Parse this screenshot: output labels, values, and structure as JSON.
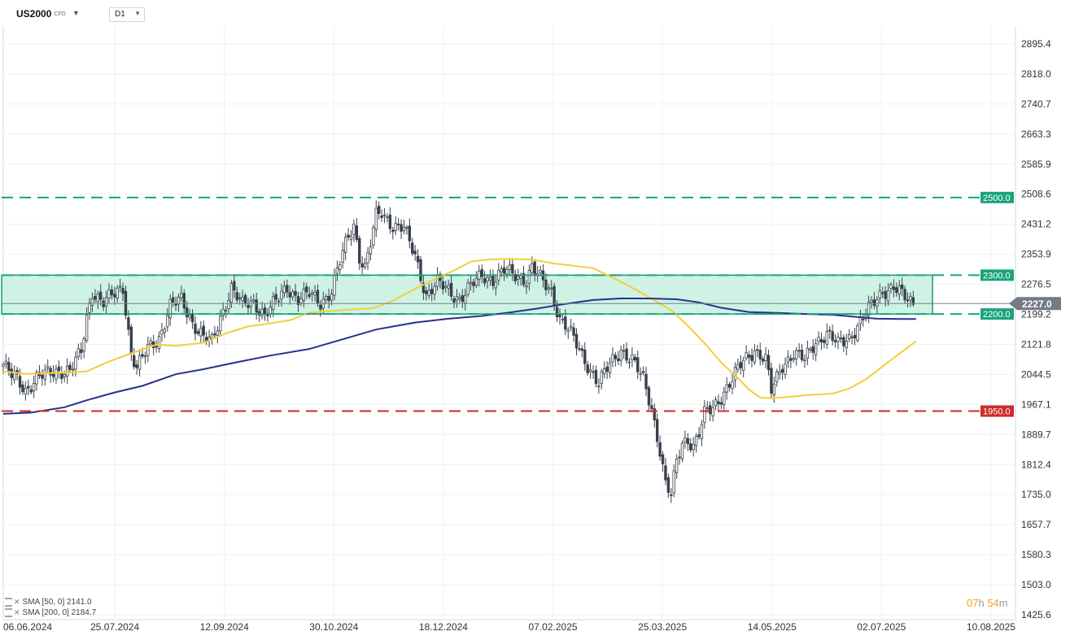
{
  "header": {
    "symbol": "US2000",
    "symbol_sub": "CFD",
    "timeframe": "D1"
  },
  "indicators": [
    {
      "label": "SMA [50, 0]",
      "value": "2141.0",
      "color": "#f2cf3a"
    },
    {
      "label": "SMA [200, 0]",
      "value": "2184.7",
      "color": "#27318d"
    }
  ],
  "timer": {
    "h": "07",
    "h_unit": "h",
    "m": "54",
    "m_unit": "m"
  },
  "chart_data": {
    "type": "candlestick",
    "y_ticks": [
      "2895.4",
      "2818.0",
      "2740.7",
      "2663.3",
      "2585.9",
      "2508.6",
      "2431.2",
      "2353.9",
      "2276.5",
      "2199.2",
      "2121.8",
      "2044.5",
      "1967.1",
      "1889.7",
      "1812.4",
      "1735.0",
      "1657.7",
      "1580.3",
      "1503.0",
      "1425.6"
    ],
    "x_ticks": [
      "06.06.2024",
      "25.07.2024",
      "12.09.2024",
      "30.10.2024",
      "18.12.2024",
      "07.02.2025",
      "25.03.2025",
      "14.05.2025",
      "02.07.2025",
      "10.08.2025"
    ],
    "ylim": [
      1425.6,
      2895.4
    ],
    "current_price": "2227.0",
    "levels": [
      {
        "value": 2500,
        "label": "2500.0",
        "color": "#1aa37c",
        "style": "dashed"
      },
      {
        "value": 2300,
        "label": "2300.0",
        "color": "#1aa37c",
        "style": "dashed"
      },
      {
        "value": 2200,
        "label": "2200.0",
        "color": "#1aa37c",
        "style": "dashed"
      },
      {
        "value": 1950,
        "label": "1950.0",
        "color": "#cf2a2a",
        "style": "dashed"
      }
    ],
    "zone": {
      "from": 2200,
      "to": 2300,
      "color": "#7fe0c2"
    },
    "series": [
      {
        "name": "SMA 50",
        "color": "#f2cf3a",
        "points": [
          [
            0,
            2052
          ],
          [
            8,
            2046
          ],
          [
            18,
            2048
          ],
          [
            30,
            2052
          ],
          [
            38,
            2078
          ],
          [
            48,
            2104
          ],
          [
            55,
            2121
          ],
          [
            62,
            2118
          ],
          [
            72,
            2126
          ],
          [
            80,
            2150
          ],
          [
            88,
            2168
          ],
          [
            95,
            2175
          ],
          [
            103,
            2184
          ],
          [
            110,
            2203
          ],
          [
            118,
            2208
          ],
          [
            126,
            2212
          ],
          [
            133,
            2215
          ],
          [
            140,
            2234
          ],
          [
            148,
            2265
          ],
          [
            155,
            2290
          ],
          [
            162,
            2312
          ],
          [
            168,
            2335
          ],
          [
            174,
            2340
          ],
          [
            182,
            2342
          ],
          [
            190,
            2340
          ],
          [
            198,
            2330
          ],
          [
            204,
            2325
          ],
          [
            212,
            2318
          ],
          [
            220,
            2290
          ],
          [
            228,
            2260
          ],
          [
            234,
            2235
          ],
          [
            240,
            2210
          ],
          [
            246,
            2170
          ],
          [
            252,
            2125
          ],
          [
            258,
            2075
          ],
          [
            264,
            2035
          ],
          [
            268,
            2005
          ],
          [
            272,
            1985
          ],
          [
            276,
            1983
          ],
          [
            282,
            1986
          ],
          [
            290,
            1992
          ],
          [
            298,
            1995
          ],
          [
            304,
            2008
          ],
          [
            310,
            2032
          ],
          [
            316,
            2065
          ],
          [
            322,
            2098
          ],
          [
            328,
            2130
          ]
        ]
      },
      {
        "name": "SMA 200",
        "color": "#27318d",
        "points": [
          [
            0,
            1943
          ],
          [
            10,
            1946
          ],
          [
            22,
            1960
          ],
          [
            30,
            1978
          ],
          [
            40,
            1998
          ],
          [
            50,
            2015
          ],
          [
            62,
            2045
          ],
          [
            72,
            2058
          ],
          [
            84,
            2076
          ],
          [
            96,
            2093
          ],
          [
            110,
            2110
          ],
          [
            122,
            2135
          ],
          [
            134,
            2160
          ],
          [
            148,
            2178
          ],
          [
            160,
            2188
          ],
          [
            172,
            2195
          ],
          [
            182,
            2204
          ],
          [
            192,
            2214
          ],
          [
            202,
            2226
          ],
          [
            212,
            2236
          ],
          [
            222,
            2240
          ],
          [
            232,
            2240
          ],
          [
            242,
            2238
          ],
          [
            250,
            2230
          ],
          [
            258,
            2216
          ],
          [
            268,
            2205
          ],
          [
            278,
            2203
          ],
          [
            288,
            2200
          ],
          [
            298,
            2198
          ],
          [
            306,
            2193
          ],
          [
            314,
            2188
          ],
          [
            322,
            2187
          ],
          [
            328,
            2187
          ]
        ]
      },
      {
        "name": "Close",
        "color": "#39414b",
        "points": [
          [
            0,
            2070
          ],
          [
            3,
            2040
          ],
          [
            5,
            2030
          ],
          [
            8,
            2005
          ],
          [
            12,
            2035
          ],
          [
            16,
            2045
          ],
          [
            20,
            2055
          ],
          [
            24,
            2055
          ],
          [
            28,
            2100
          ],
          [
            30,
            2190
          ],
          [
            32,
            2260
          ],
          [
            36,
            2230
          ],
          [
            40,
            2250
          ],
          [
            43,
            2270
          ],
          [
            46,
            2100
          ],
          [
            48,
            2060
          ],
          [
            52,
            2110
          ],
          [
            56,
            2140
          ],
          [
            60,
            2220
          ],
          [
            64,
            2235
          ],
          [
            68,
            2180
          ],
          [
            72,
            2140
          ],
          [
            75,
            2125
          ],
          [
            78,
            2190
          ],
          [
            82,
            2270
          ],
          [
            86,
            2220
          ],
          [
            90,
            2230
          ],
          [
            94,
            2200
          ],
          [
            98,
            2230
          ],
          [
            102,
            2270
          ],
          [
            106,
            2240
          ],
          [
            110,
            2250
          ],
          [
            114,
            2230
          ],
          [
            118,
            2260
          ],
          [
            120,
            2310
          ],
          [
            124,
            2400
          ],
          [
            126,
            2430
          ],
          [
            128,
            2350
          ],
          [
            130,
            2320
          ],
          [
            132,
            2380
          ],
          [
            134,
            2450
          ],
          [
            136,
            2460
          ],
          [
            140,
            2430
          ],
          [
            144,
            2420
          ],
          [
            146,
            2380
          ],
          [
            148,
            2350
          ],
          [
            150,
            2300
          ],
          [
            152,
            2250
          ],
          [
            156,
            2280
          ],
          [
            160,
            2260
          ],
          [
            164,
            2240
          ],
          [
            168,
            2270
          ],
          [
            172,
            2300
          ],
          [
            176,
            2290
          ],
          [
            180,
            2310
          ],
          [
            184,
            2300
          ],
          [
            188,
            2290
          ],
          [
            190,
            2320
          ],
          [
            194,
            2280
          ],
          [
            197,
            2260
          ],
          [
            200,
            2190
          ],
          [
            203,
            2160
          ],
          [
            206,
            2120
          ],
          [
            210,
            2070
          ],
          [
            214,
            2020
          ],
          [
            218,
            2070
          ],
          [
            222,
            2110
          ],
          [
            226,
            2080
          ],
          [
            230,
            2030
          ],
          [
            233,
            1960
          ],
          [
            236,
            1850
          ],
          [
            238,
            1760
          ],
          [
            240,
            1730
          ],
          [
            242,
            1820
          ],
          [
            244,
            1870
          ],
          [
            246,
            1880
          ],
          [
            248,
            1860
          ],
          [
            250,
            1890
          ],
          [
            252,
            1940
          ],
          [
            255,
            1960
          ],
          [
            258,
            1990
          ],
          [
            262,
            2030
          ],
          [
            266,
            2080
          ],
          [
            270,
            2110
          ],
          [
            274,
            2080
          ],
          [
            276,
            2000
          ],
          [
            280,
            2070
          ],
          [
            284,
            2100
          ],
          [
            288,
            2080
          ],
          [
            292,
            2130
          ],
          [
            296,
            2150
          ],
          [
            300,
            2120
          ],
          [
            304,
            2140
          ],
          [
            308,
            2180
          ],
          [
            312,
            2220
          ],
          [
            316,
            2260
          ],
          [
            320,
            2270
          ],
          [
            324,
            2240
          ],
          [
            327,
            2227
          ]
        ]
      }
    ]
  }
}
